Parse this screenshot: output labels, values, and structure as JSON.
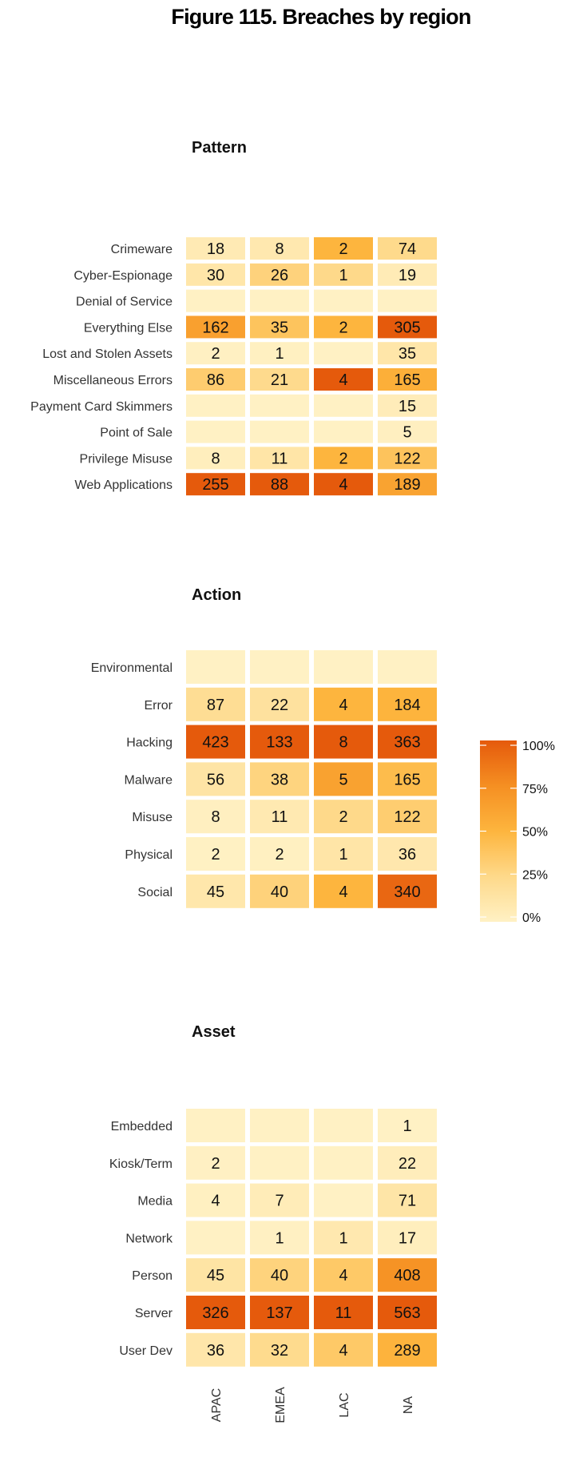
{
  "figure_title": "Figure 115. Breaches by region",
  "chart_data": [
    {
      "type": "heatmap",
      "title": "Pattern",
      "columns": [
        "APAC",
        "EMEA",
        "LAC",
        "NA"
      ],
      "rows": [
        "Crimeware",
        "Cyber-Espionage",
        "Denial of Service",
        "Everything Else",
        "Lost and Stolen Assets",
        "Miscellaneous Errors",
        "Payment Card Skimmers",
        "Point of Sale",
        "Privilege Misuse",
        "Web Applications"
      ],
      "values": [
        [
          18,
          8,
          2,
          74
        ],
        [
          30,
          26,
          1,
          19
        ],
        [
          null,
          null,
          null,
          null
        ],
        [
          162,
          35,
          2,
          305
        ],
        [
          2,
          1,
          null,
          35
        ],
        [
          86,
          21,
          4,
          165
        ],
        [
          null,
          null,
          null,
          15
        ],
        [
          null,
          null,
          null,
          5
        ],
        [
          8,
          11,
          2,
          122
        ],
        [
          255,
          88,
          4,
          189
        ]
      ]
    },
    {
      "type": "heatmap",
      "title": "Action",
      "columns": [
        "APAC",
        "EMEA",
        "LAC",
        "NA"
      ],
      "rows": [
        "Environmental",
        "Error",
        "Hacking",
        "Malware",
        "Misuse",
        "Physical",
        "Social"
      ],
      "values": [
        [
          null,
          null,
          null,
          null
        ],
        [
          87,
          22,
          4,
          184
        ],
        [
          423,
          133,
          8,
          363
        ],
        [
          56,
          38,
          5,
          165
        ],
        [
          8,
          11,
          2,
          122
        ],
        [
          2,
          2,
          1,
          36
        ],
        [
          45,
          40,
          4,
          340
        ]
      ]
    },
    {
      "type": "heatmap",
      "title": "Asset",
      "columns": [
        "APAC",
        "EMEA",
        "LAC",
        "NA"
      ],
      "rows": [
        "Embedded",
        "Kiosk/Term",
        "Media",
        "Network",
        "Person",
        "Server",
        "User Dev"
      ],
      "values": [
        [
          null,
          null,
          null,
          1
        ],
        [
          2,
          null,
          null,
          22
        ],
        [
          4,
          7,
          null,
          71
        ],
        [
          null,
          1,
          1,
          17
        ],
        [
          45,
          40,
          4,
          408
        ],
        [
          326,
          137,
          11,
          563
        ],
        [
          36,
          32,
          4,
          289
        ]
      ]
    }
  ],
  "legend": {
    "labels": [
      "100%",
      "75%",
      "50%",
      "25%",
      "0%"
    ],
    "stops": [
      0,
      0.25,
      0.5,
      0.75,
      1
    ],
    "colors": [
      "#fff1c4",
      "#fed98a",
      "#fdb53e",
      "#f58f22",
      "#e55a0c"
    ]
  },
  "column_labels": [
    "APAC",
    "EMEA",
    "LAC",
    "NA"
  ]
}
